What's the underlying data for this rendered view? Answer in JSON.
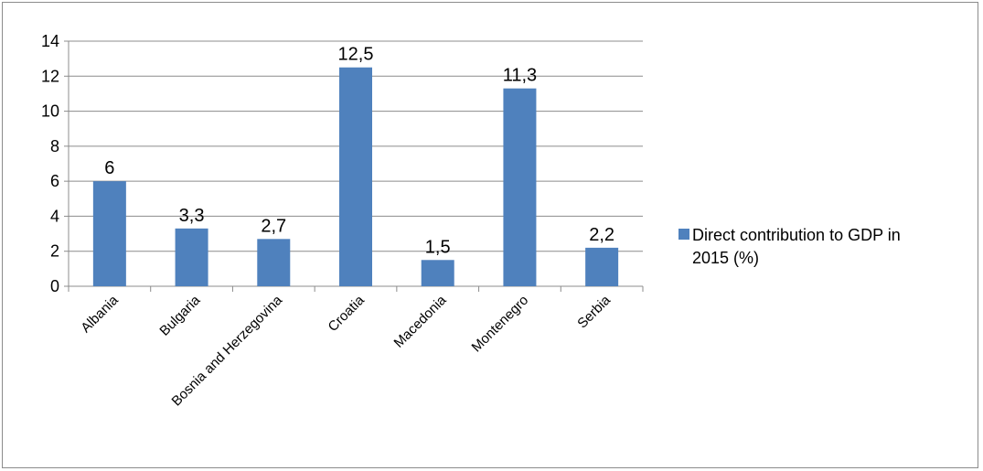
{
  "chart_data": {
    "type": "bar",
    "categories": [
      "Albania",
      "Bulgaria",
      "Bosnia and Herzegovina",
      "Croatia",
      "Macedonia",
      "Montenegro",
      "Serbia"
    ],
    "series": [
      {
        "name": "Direct contribution to GDP in 2015 (%)",
        "values": [
          6,
          3.3,
          2.7,
          12.5,
          1.5,
          11.3,
          2.2
        ],
        "data_labels": [
          "6",
          "3,3",
          "2,7",
          "12,5",
          "1,5",
          "11,3",
          "2,2"
        ],
        "color": "#4f81bd"
      }
    ],
    "y_ticks": [
      "0",
      "2",
      "4",
      "6",
      "8",
      "10",
      "12",
      "14"
    ],
    "ylim": [
      0,
      14
    ],
    "grid": true,
    "legend_position": "right",
    "legend_lines": [
      "Direct contribution to GDP in",
      "2015 (%)"
    ],
    "title": "",
    "xlabel": "",
    "ylabel": ""
  }
}
